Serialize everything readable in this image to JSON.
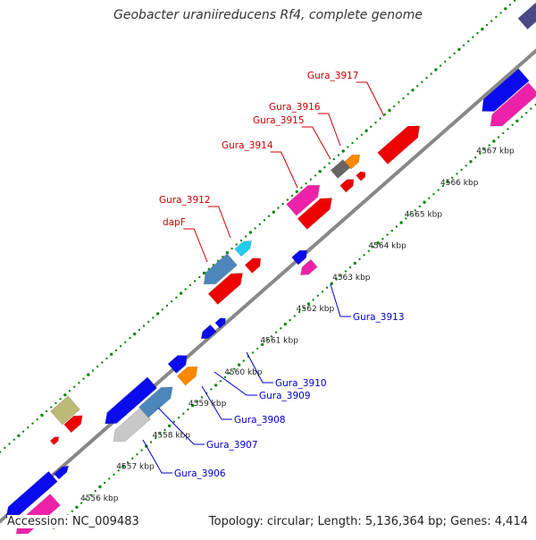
{
  "title": "Geobacter uraniireducens Rf4, complete genome",
  "footer": {
    "accession": "Accession: NC_009483",
    "summary": "Topology: circular; Length: 5,136,364 bp; Genes: 4,414"
  },
  "colors": {
    "backbone": "#888888",
    "ticks": "#118811",
    "label_forward": "#cc0000",
    "label_reverse": "#0000cc",
    "blue": "#0a0aee",
    "magenta": "#ee22aa",
    "red": "#ee0000",
    "steelblue": "#4d86bb",
    "cyan": "#22ccee",
    "orange": "#ff8800",
    "gray": "#666666",
    "lightgray": "#c8c8c8",
    "olive": "#bbbb77",
    "purple": "#4a4a88"
  },
  "scale": {
    "labels": [
      "4556 kbp",
      "4557 kbp",
      "4558 kbp",
      "4559 kbp",
      "4560 kbp",
      "4561 kbp",
      "4562 kbp",
      "4563 kbp",
      "4564 kbp",
      "4565 kbp",
      "4566 kbp",
      "4567 kbp"
    ]
  },
  "gene_labels": {
    "forward": [
      "dapF",
      "Gura_3912",
      "Gura_3914",
      "Gura_3915",
      "Gura_3916",
      "Gura_3917"
    ],
    "reverse": [
      "Gura_3906",
      "Gura_3907",
      "Gura_3908",
      "Gura_3909",
      "Gura_3910",
      "Gura_3913"
    ]
  },
  "features": [
    {
      "color": "magenta",
      "dir": "r"
    },
    {
      "color": "blue",
      "dir": "r"
    },
    {
      "color": "blue",
      "dir": "f"
    },
    {
      "color": "lightgray",
      "dir": "r"
    },
    {
      "color": "steelblue",
      "dir": "f"
    },
    {
      "color": "orange",
      "dir": "f"
    },
    {
      "color": "blue",
      "dir": "r"
    },
    {
      "color": "blue",
      "dir": "f"
    },
    {
      "color": "blue",
      "dir": "r"
    },
    {
      "color": "blue",
      "dir": "f"
    },
    {
      "color": "blue",
      "dir": "f"
    },
    {
      "color": "magenta",
      "dir": "r"
    },
    {
      "color": "olive",
      "dir": "n"
    },
    {
      "color": "red",
      "dir": "f"
    },
    {
      "color": "red",
      "dir": "f"
    },
    {
      "color": "steelblue",
      "dir": "r"
    },
    {
      "color": "red",
      "dir": "f"
    },
    {
      "color": "cyan",
      "dir": "f"
    },
    {
      "color": "red",
      "dir": "f"
    },
    {
      "color": "magenta",
      "dir": "f"
    },
    {
      "color": "red",
      "dir": "f"
    },
    {
      "color": "gray",
      "dir": "n"
    },
    {
      "color": "orange",
      "dir": "f"
    },
    {
      "color": "red",
      "dir": "f"
    },
    {
      "color": "red",
      "dir": "f"
    },
    {
      "color": "red",
      "dir": "f"
    },
    {
      "color": "blue",
      "dir": "r"
    },
    {
      "color": "magenta",
      "dir": "r"
    },
    {
      "color": "purple",
      "dir": "n"
    }
  ]
}
